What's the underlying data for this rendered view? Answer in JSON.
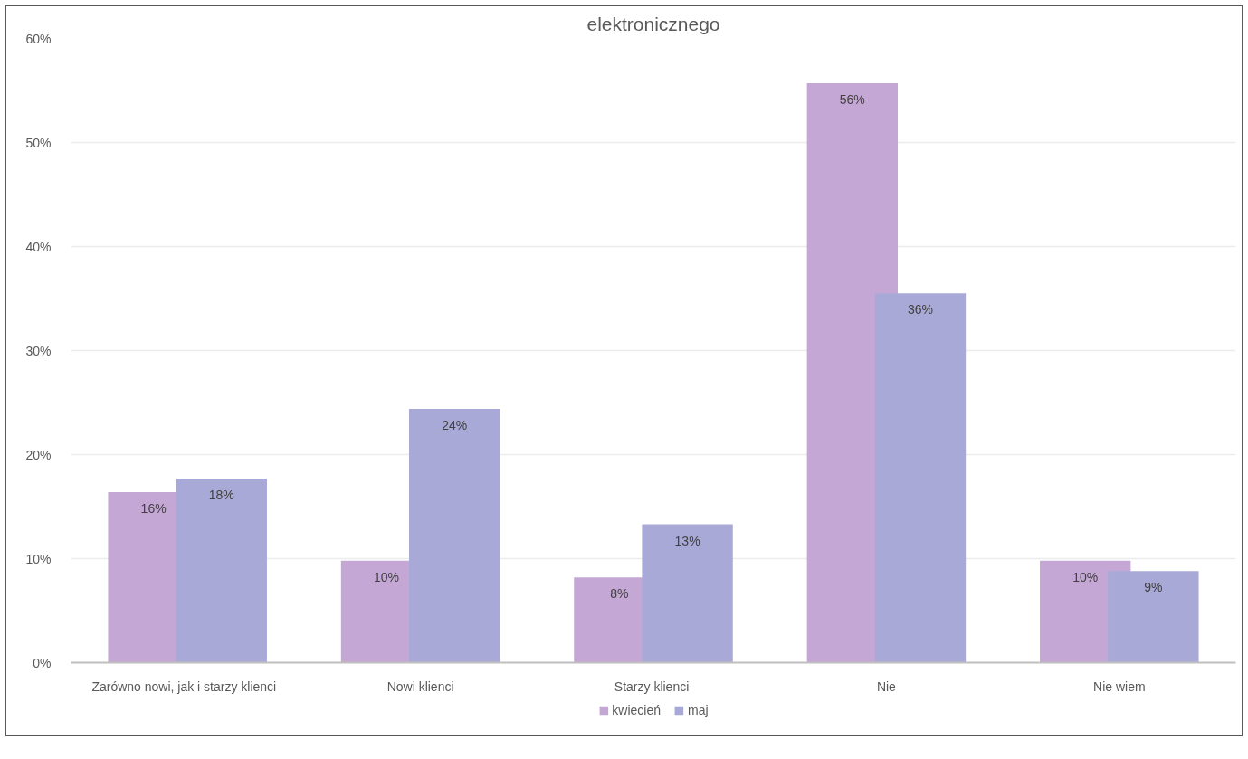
{
  "chart_data": {
    "type": "bar",
    "title": "elektronicznego",
    "categories": [
      "Zarówno  nowi, jak  i starzy klienci",
      "Nowi klienci",
      "Starzy  klienci",
      "Nie",
      "Nie wiem"
    ],
    "series": [
      {
        "name": "kwiecień",
        "color": "#c5a7d6",
        "values": [
          16.4,
          9.8,
          8.2,
          55.7,
          9.8
        ],
        "value_labels": [
          "16%",
          "10%",
          "8%",
          "56%",
          "10%"
        ]
      },
      {
        "name": "maj",
        "color": "#a9a9d8",
        "values": [
          17.7,
          24.4,
          13.3,
          35.5,
          8.8
        ],
        "value_labels": [
          "18%",
          "24%",
          "13%",
          "36%",
          "9%"
        ]
      }
    ],
    "ylim": [
      0,
      60
    ],
    "yticks": [
      {
        "value": 0,
        "label": "0%"
      },
      {
        "value": 10,
        "label": "10%"
      },
      {
        "value": 20,
        "label": "20%"
      },
      {
        "value": 30,
        "label": "30%"
      },
      {
        "value": 40,
        "label": "40%"
      },
      {
        "value": 50,
        "label": "50%"
      },
      {
        "value": 60,
        "label": "60%"
      }
    ],
    "grid": "y",
    "legend": "bottom"
  }
}
